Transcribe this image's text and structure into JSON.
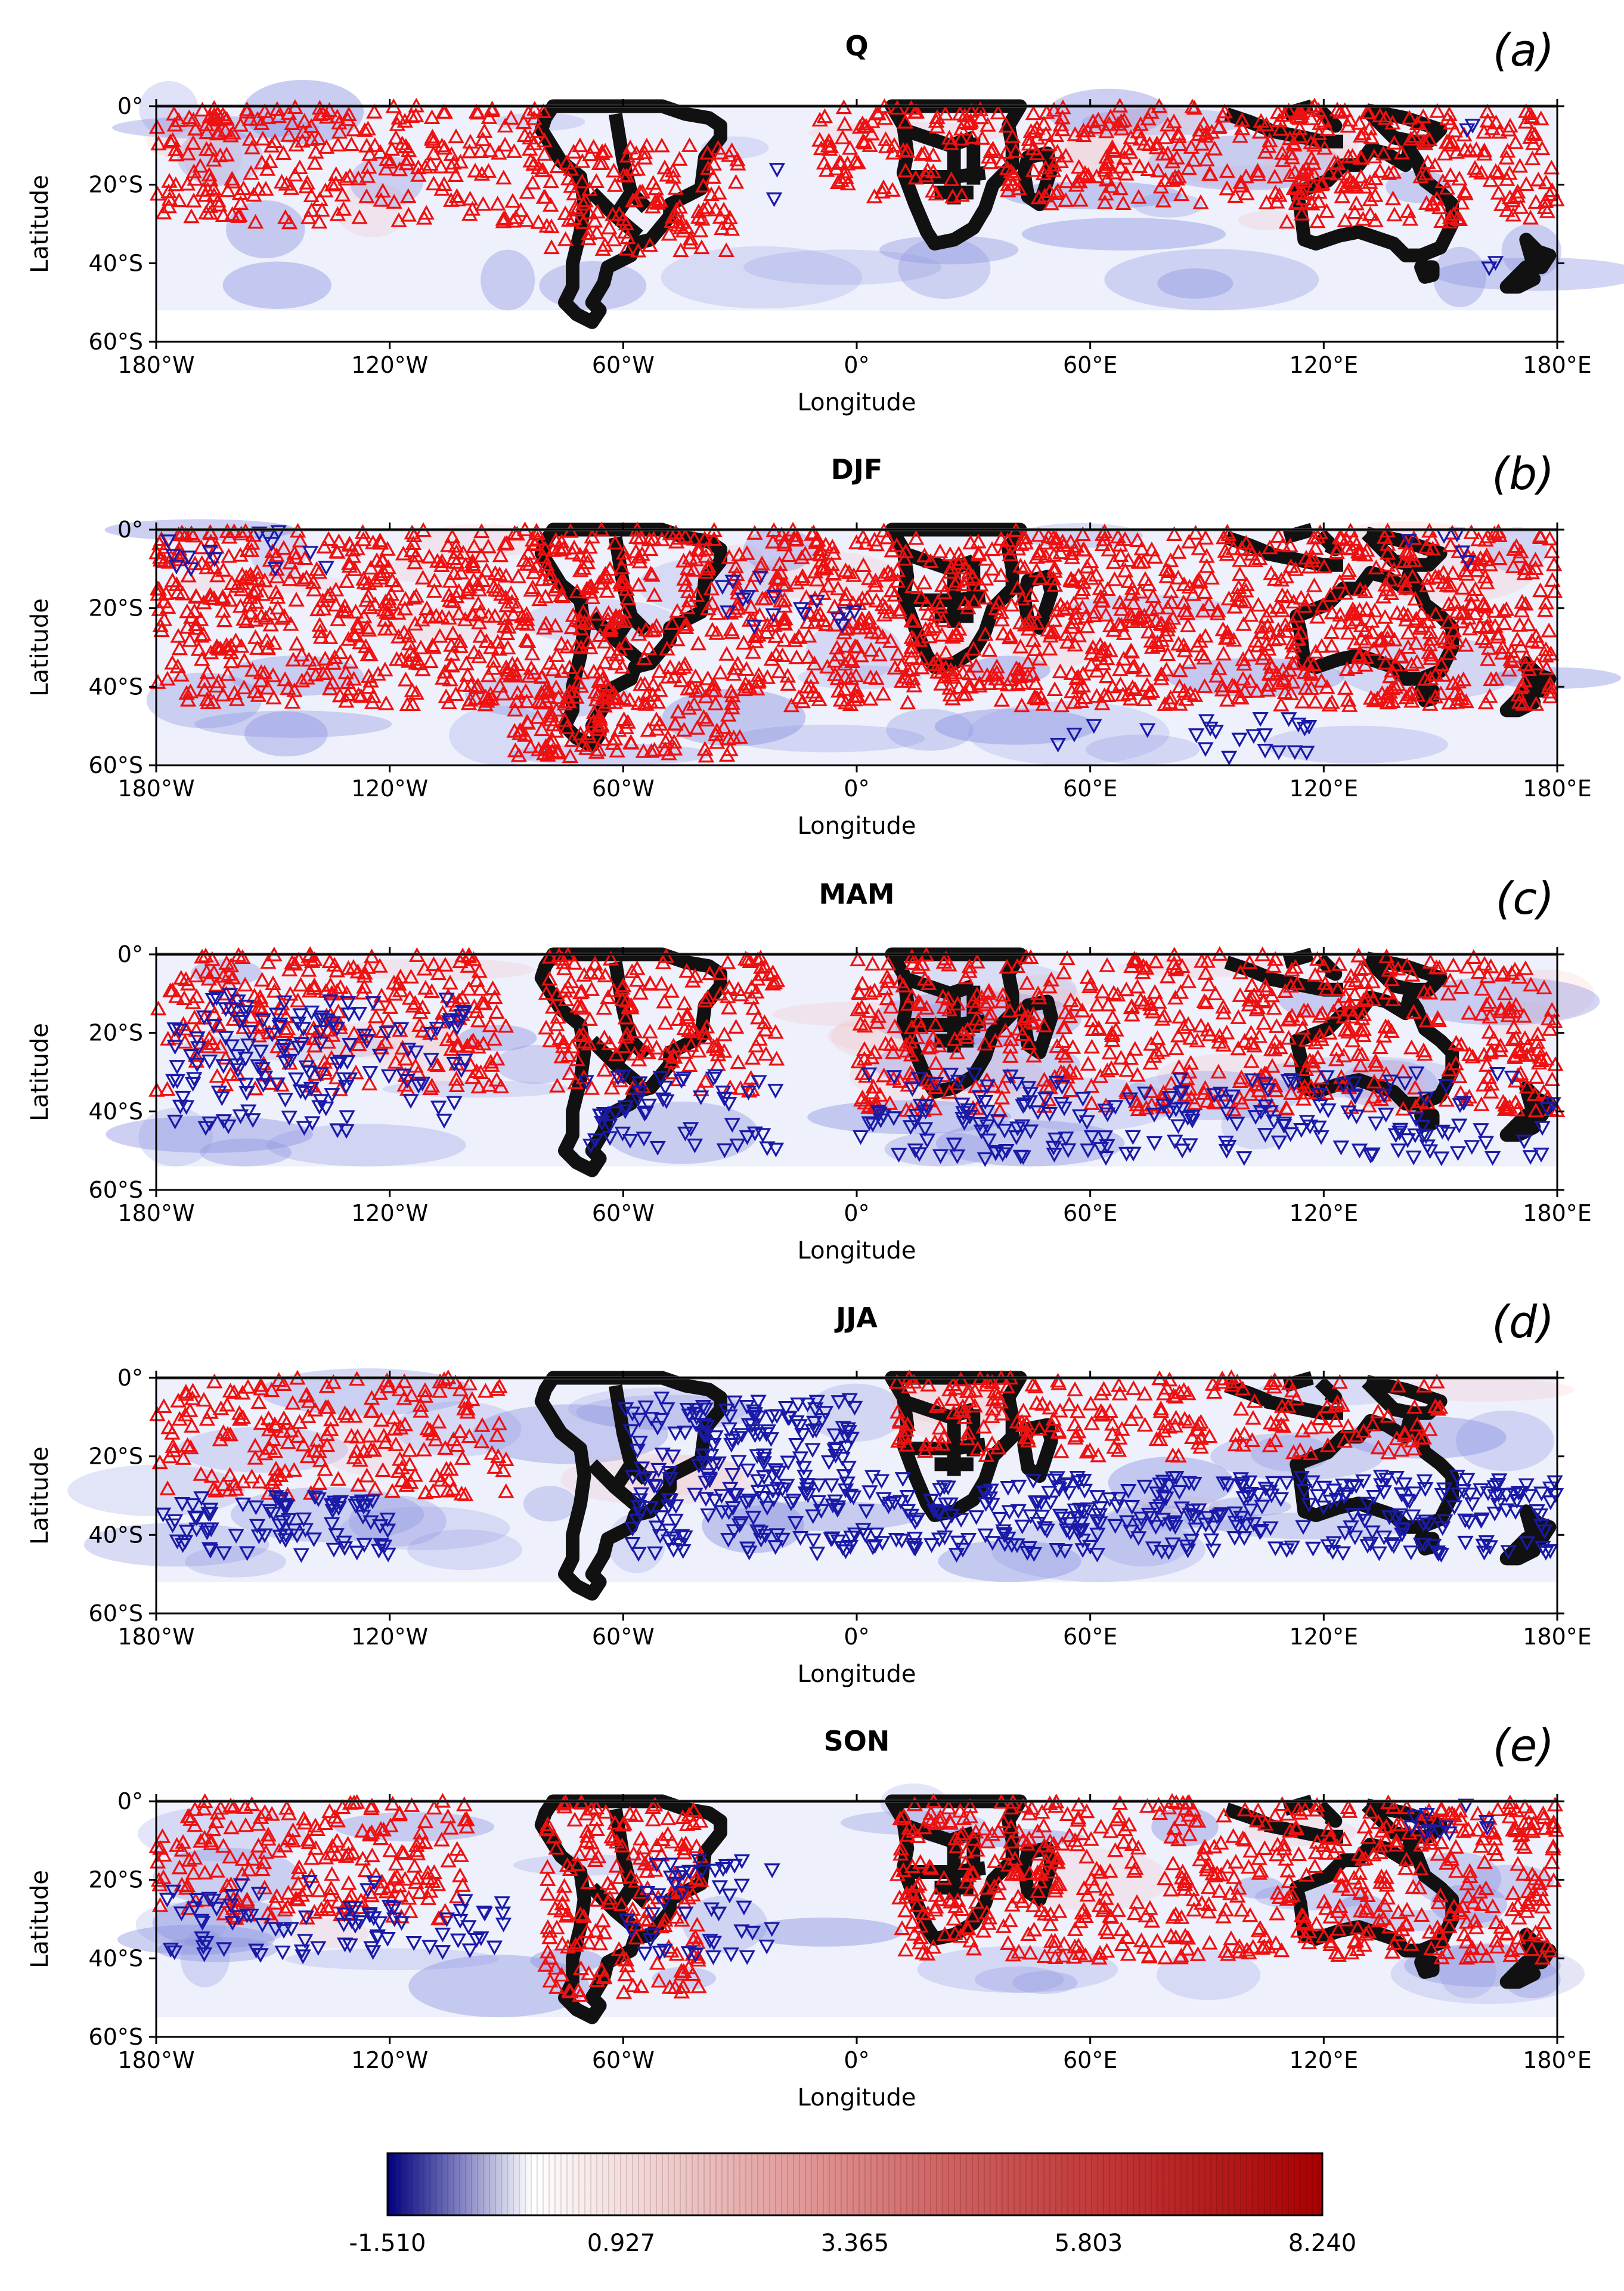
{
  "chart_data": [
    {
      "type": "scatter",
      "panel": "a",
      "title": "Q",
      "label": "(a)",
      "xlabel": "Longitude",
      "ylabel": "Latitude",
      "xlim": [
        -180,
        180
      ],
      "ylim": [
        -60,
        0
      ],
      "xticks": [
        "180°W",
        "120°W",
        "60°W",
        "0°",
        "60°E",
        "120°E",
        "180°E"
      ],
      "yticks": [
        "0°",
        "20°S",
        "40°S",
        "60°S"
      ],
      "field_south_lat": -52,
      "increase_density": 1.0,
      "decrease_density": 0.12,
      "up_zones": [
        [
          -180,
          -80,
          0,
          -30
        ],
        [
          -80,
          -30,
          -10,
          -38
        ],
        [
          -10,
          120,
          0,
          -25
        ],
        [
          110,
          180,
          0,
          -30
        ]
      ],
      "down_zones": [
        [
          -25,
          -10,
          -15,
          -25
        ],
        [
          140,
          160,
          0,
          -8
        ],
        [
          160,
          180,
          -38,
          -48
        ]
      ]
    },
    {
      "type": "scatter",
      "panel": "b",
      "title": "DJF",
      "label": "(b)",
      "xlabel": "Longitude",
      "ylabel": "Latitude",
      "xlim": [
        -180,
        180
      ],
      "ylim": [
        -60,
        0
      ],
      "xticks": [
        "180°W",
        "120°W",
        "60°W",
        "0°",
        "60°E",
        "120°E",
        "180°E"
      ],
      "yticks": [
        "0°",
        "20°S",
        "40°S",
        "60°S"
      ],
      "field_south_lat": -60,
      "increase_density": 1.2,
      "decrease_density": 0.3,
      "up_zones": [
        [
          -180,
          180,
          0,
          -45
        ],
        [
          -90,
          -30,
          -40,
          -58
        ]
      ],
      "down_zones": [
        [
          -180,
          -130,
          0,
          -10
        ],
        [
          40,
          120,
          -48,
          -58
        ],
        [
          140,
          160,
          0,
          -10
        ],
        [
          -40,
          0,
          -10,
          -25
        ]
      ]
    },
    {
      "type": "scatter",
      "panel": "c",
      "title": "MAM",
      "label": "(c)",
      "xlabel": "Longitude",
      "ylabel": "Latitude",
      "xlim": [
        -180,
        180
      ],
      "ylim": [
        -60,
        0
      ],
      "xticks": [
        "180°W",
        "120°W",
        "60°W",
        "0°",
        "60°E",
        "120°E",
        "180°E"
      ],
      "yticks": [
        "0°",
        "20°S",
        "40°S",
        "60°S"
      ],
      "field_south_lat": -54,
      "increase_density": 0.9,
      "decrease_density": 0.55,
      "up_zones": [
        [
          -180,
          -90,
          0,
          -35
        ],
        [
          -80,
          -20,
          0,
          -35
        ],
        [
          0,
          180,
          0,
          -40
        ]
      ],
      "down_zones": [
        [
          -70,
          -20,
          -30,
          -50
        ],
        [
          0,
          180,
          -30,
          -52
        ],
        [
          -180,
          -100,
          -10,
          -45
        ]
      ]
    },
    {
      "type": "scatter",
      "panel": "d",
      "title": "JJA",
      "label": "(d)",
      "xlabel": "Longitude",
      "ylabel": "Latitude",
      "xlim": [
        -180,
        180
      ],
      "ylim": [
        -60,
        0
      ],
      "xticks": [
        "180°W",
        "120°W",
        "60°W",
        "0°",
        "60°E",
        "120°E",
        "180°E"
      ],
      "yticks": [
        "0°",
        "20°S",
        "40°S",
        "60°S"
      ],
      "field_south_lat": -52,
      "increase_density": 0.85,
      "decrease_density": 1.0,
      "up_zones": [
        [
          -180,
          -90,
          0,
          -30
        ],
        [
          10,
          150,
          0,
          -20
        ]
      ],
      "down_zones": [
        [
          -60,
          0,
          -5,
          -45
        ],
        [
          0,
          180,
          -25,
          -45
        ],
        [
          -180,
          -120,
          -30,
          -45
        ]
      ]
    },
    {
      "type": "scatter",
      "panel": "e",
      "title": "SON",
      "label": "(e)",
      "xlabel": "Longitude",
      "ylabel": "Latitude",
      "xlim": [
        -180,
        180
      ],
      "ylim": [
        -60,
        0
      ],
      "xticks": [
        "180°W",
        "120°W",
        "60°W",
        "0°",
        "60°E",
        "120°E",
        "180°E"
      ],
      "yticks": [
        "0°",
        "20°S",
        "40°S",
        "60°S"
      ],
      "field_south_lat": -55,
      "increase_density": 1.0,
      "decrease_density": 0.5,
      "up_zones": [
        [
          -180,
          -100,
          0,
          -30
        ],
        [
          -80,
          -40,
          0,
          -50
        ],
        [
          10,
          180,
          0,
          -40
        ]
      ],
      "down_zones": [
        [
          -60,
          -20,
          -15,
          -40
        ],
        [
          -180,
          -120,
          -20,
          -40
        ],
        [
          140,
          170,
          0,
          -8
        ],
        [
          -130,
          -90,
          -25,
          -40
        ]
      ]
    }
  ],
  "colorbar": {
    "ticks": [
      "-1.510",
      "0.927",
      "3.365",
      "5.803",
      "8.240"
    ],
    "min": -1.51,
    "max": 8.24,
    "low_color": "#000080",
    "mid_color": "#ffffff",
    "high_color": "#aa0000"
  },
  "colors": {
    "increase_marker": "#ee1111",
    "decrease_marker": "#1a1aa8",
    "coast": "#111111"
  }
}
